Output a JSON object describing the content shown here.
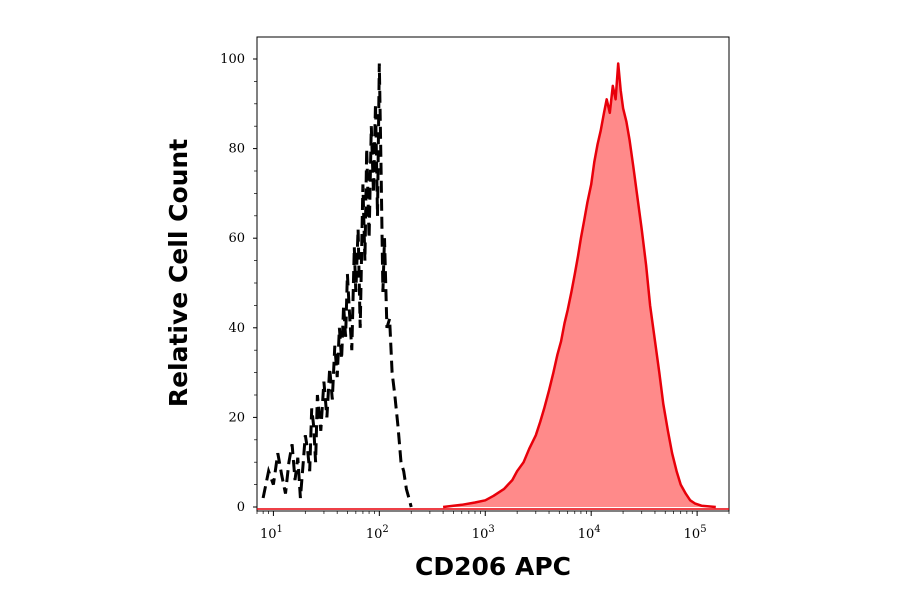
{
  "chart_data": {
    "type": "area",
    "title": "",
    "xlabel": "CD206 APC",
    "ylabel": "Relative Cell Count",
    "x_scale": "log",
    "xlim": [
      7,
      200000
    ],
    "ylim": [
      0,
      105
    ],
    "x_ticks": [
      {
        "value": 10,
        "base": "10",
        "exp": "1"
      },
      {
        "value": 100,
        "base": "10",
        "exp": "2"
      },
      {
        "value": 1000,
        "base": "10",
        "exp": "3"
      },
      {
        "value": 10000,
        "base": "10",
        "exp": "4"
      },
      {
        "value": 100000,
        "base": "10",
        "exp": "5"
      }
    ],
    "y_ticks": [
      0,
      20,
      40,
      60,
      80,
      100
    ],
    "grid": false,
    "series": [
      {
        "style": "dashed",
        "fill": false,
        "color": "#000000",
        "points": [
          [
            8,
            2
          ],
          [
            9,
            8
          ],
          [
            10,
            5
          ],
          [
            11,
            12
          ],
          [
            12,
            7
          ],
          [
            13,
            3
          ],
          [
            14,
            10
          ],
          [
            15,
            14
          ],
          [
            16,
            6
          ],
          [
            17,
            11
          ],
          [
            18,
            2
          ],
          [
            19,
            9
          ],
          [
            20,
            16
          ],
          [
            21,
            13
          ],
          [
            22,
            8
          ],
          [
            23,
            22
          ],
          [
            24,
            18
          ],
          [
            25,
            10
          ],
          [
            26,
            25
          ],
          [
            28,
            17
          ],
          [
            30,
            28
          ],
          [
            32,
            20
          ],
          [
            34,
            31
          ],
          [
            36,
            24
          ],
          [
            38,
            36
          ],
          [
            40,
            29
          ],
          [
            42,
            40
          ],
          [
            44,
            33
          ],
          [
            46,
            45
          ],
          [
            48,
            38
          ],
          [
            50,
            52
          ],
          [
            52,
            44
          ],
          [
            55,
            35
          ],
          [
            58,
            58
          ],
          [
            60,
            48
          ],
          [
            63,
            62
          ],
          [
            66,
            40
          ],
          [
            70,
            72
          ],
          [
            73,
            55
          ],
          [
            76,
            80
          ],
          [
            80,
            60
          ],
          [
            84,
            85
          ],
          [
            88,
            70
          ],
          [
            92,
            90
          ],
          [
            96,
            65
          ],
          [
            100,
            99
          ],
          [
            104,
            75
          ],
          [
            108,
            48
          ],
          [
            112,
            60
          ],
          [
            118,
            40
          ],
          [
            125,
            42
          ],
          [
            132,
            30
          ],
          [
            140,
            25
          ],
          [
            150,
            18
          ],
          [
            160,
            10
          ],
          [
            170,
            8
          ],
          [
            180,
            4
          ],
          [
            190,
            2
          ],
          [
            200,
            0
          ]
        ]
      },
      {
        "style": "solid",
        "fill": true,
        "color": "#e8000a",
        "fill_color": "#ff8a8a",
        "points": [
          [
            400,
            0
          ],
          [
            600,
            0.5
          ],
          [
            800,
            1
          ],
          [
            1000,
            1.5
          ],
          [
            1200,
            2.5
          ],
          [
            1500,
            4
          ],
          [
            1800,
            6
          ],
          [
            2000,
            8
          ],
          [
            2300,
            10
          ],
          [
            2600,
            13
          ],
          [
            3000,
            16
          ],
          [
            3300,
            19
          ],
          [
            3600,
            22
          ],
          [
            4000,
            26
          ],
          [
            4400,
            30
          ],
          [
            4800,
            34
          ],
          [
            5200,
            37
          ],
          [
            5600,
            41
          ],
          [
            6000,
            44
          ],
          [
            6500,
            48
          ],
          [
            7000,
            52
          ],
          [
            7500,
            56
          ],
          [
            8000,
            60
          ],
          [
            8600,
            64
          ],
          [
            9200,
            68
          ],
          [
            10000,
            72
          ],
          [
            10700,
            77
          ],
          [
            11500,
            81
          ],
          [
            12300,
            84
          ],
          [
            13200,
            88
          ],
          [
            14000,
            91
          ],
          [
            15000,
            88
          ],
          [
            16000,
            94
          ],
          [
            17000,
            91
          ],
          [
            18000,
            99
          ],
          [
            19000,
            93
          ],
          [
            20000,
            89
          ],
          [
            21500,
            86
          ],
          [
            23000,
            82
          ],
          [
            25000,
            76
          ],
          [
            27000,
            70
          ],
          [
            30000,
            62
          ],
          [
            33000,
            54
          ],
          [
            36000,
            45
          ],
          [
            40000,
            37
          ],
          [
            44000,
            30
          ],
          [
            48000,
            23
          ],
          [
            53000,
            17
          ],
          [
            58000,
            12
          ],
          [
            64000,
            8
          ],
          [
            70000,
            5
          ],
          [
            78000,
            3
          ],
          [
            86000,
            1.5
          ],
          [
            95000,
            0.8
          ],
          [
            110000,
            0.3
          ],
          [
            150000,
            0
          ]
        ]
      }
    ]
  }
}
